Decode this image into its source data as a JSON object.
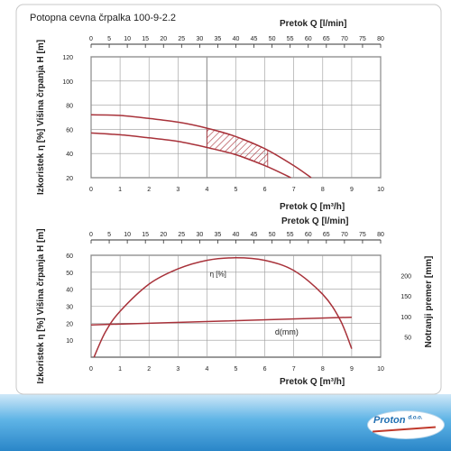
{
  "title": "Potopna cevna črpalka 100-9-2.2",
  "brand": {
    "name": "Proton",
    "suffix": "d.o.o."
  },
  "colors": {
    "curve": "#a8323a",
    "axis": "#333333",
    "grid": "#9a9a9a",
    "frame": "#c8c8c8"
  },
  "chart_data": [
    {
      "type": "line",
      "ylabel": "Izkoristek η [%]  Višina črpanja H [m]",
      "xlabel_top": "Pretok  Q [l/min]",
      "xlabel_bottom": "Pretok  Q [m³/h]",
      "xlim_bottom": [
        0,
        10
      ],
      "xticks_bottom": [
        "0",
        "1",
        "2",
        "3",
        "4",
        "5",
        "6",
        "7",
        "8",
        "9",
        "10"
      ],
      "xlim_top": [
        0,
        80
      ],
      "xticks_top": [
        "0",
        "5",
        "10",
        "15",
        "20",
        "25",
        "30",
        "35",
        "40",
        "45",
        "50",
        "55",
        "60",
        "65",
        "70",
        "75",
        "80"
      ],
      "ylim": [
        20,
        120
      ],
      "yticks": [
        "20",
        "40",
        "60",
        "80",
        "100",
        "120"
      ],
      "series": [
        {
          "x": [
            0,
            1,
            2,
            3,
            4,
            5,
            6,
            7,
            7.6
          ],
          "y": [
            72,
            71.5,
            69,
            66,
            61,
            54,
            44,
            30,
            20
          ]
        },
        {
          "x": [
            0,
            1,
            2,
            3,
            4,
            5,
            6,
            6.9
          ],
          "y": [
            57,
            55.5,
            53,
            50,
            45,
            39,
            30,
            20
          ]
        }
      ],
      "shaded_region": {
        "x": [
          4,
          6.1
        ]
      }
    },
    {
      "type": "line",
      "ylabel": "Izkoristek η [%]  Višina črpanja H [m]",
      "ylabel_right": "Notranji premer [mm]",
      "xlabel_top": "Pretok  Q [l/min]",
      "xlabel_bottom": "Pretok  Q [m³/h]",
      "xlim_bottom": [
        0,
        10
      ],
      "xticks_bottom": [
        "0",
        "1",
        "2",
        "3",
        "4",
        "5",
        "6",
        "7",
        "8",
        "9",
        "10"
      ],
      "xlim_top": [
        0,
        80
      ],
      "xticks_top": [
        "0",
        "5",
        "10",
        "15",
        "20",
        "25",
        "30",
        "35",
        "40",
        "45",
        "50",
        "55",
        "60",
        "65",
        "70",
        "75",
        "80"
      ],
      "ylim": [
        0,
        60
      ],
      "yticks": [
        "10",
        "20",
        "30",
        "40",
        "50",
        "60"
      ],
      "yticks_right": [
        "50",
        "100",
        "150",
        "200"
      ],
      "ylim_right": [
        0,
        250
      ],
      "series": [
        {
          "name": "η [%]",
          "x": [
            0.1,
            0.5,
            1,
            2,
            3,
            4,
            5,
            6,
            7,
            8,
            8.6,
            9
          ],
          "y": [
            0,
            15,
            27,
            43,
            52,
            57,
            58.5,
            57,
            51,
            37,
            22,
            5
          ]
        },
        {
          "name": "d(mm)",
          "x": [
            0,
            9
          ],
          "y": [
            19,
            23.5
          ]
        }
      ]
    }
  ]
}
